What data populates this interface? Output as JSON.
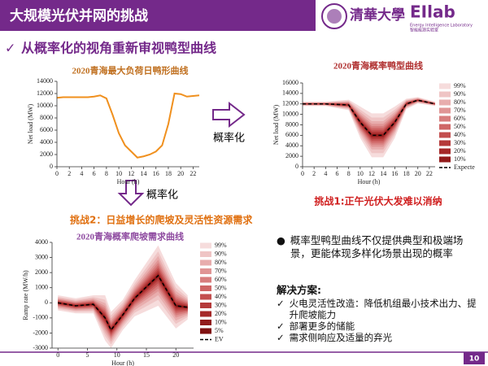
{
  "header": {
    "title": "大规模光伏并网的挑战",
    "logo_text": "清華大學",
    "lab_name": "EIlab",
    "lab_subtitle": "Energy Intelligence Laboratory",
    "lab_subtitle_cn": "智能能源实验室"
  },
  "subtitle": "从概率化的视角重新审视鸭型曲线",
  "charts": [
    {
      "type": "line",
      "title": "2020青海最大负荷日鸭形曲线",
      "xlabel": "Hour (h)",
      "ylabel": "Net load (MW)",
      "color": "#f0901e",
      "x": [
        0,
        1,
        2,
        3,
        4,
        5,
        6,
        7,
        8,
        9,
        10,
        11,
        12,
        13,
        14,
        15,
        16,
        17,
        18,
        19,
        20,
        21,
        22,
        23
      ],
      "values": [
        11300,
        11400,
        11400,
        11400,
        11400,
        11400,
        11500,
        11700,
        11200,
        8500,
        5500,
        3500,
        2500,
        1500,
        1700,
        2000,
        2500,
        3500,
        7000,
        12000,
        11900,
        11500,
        11600,
        11700
      ],
      "xlim": [
        0,
        23
      ],
      "xticks": [
        0,
        2,
        4,
        6,
        8,
        10,
        12,
        14,
        16,
        18,
        20,
        22
      ],
      "ylim": [
        0,
        14000
      ],
      "yticks": [
        0,
        2000,
        4000,
        6000,
        8000,
        10000,
        12000,
        14000
      ]
    },
    {
      "type": "fan",
      "title": "2020青海概率鸭型曲线",
      "xlabel": "Hour (h)",
      "ylabel": "Net load (MW)",
      "x": [
        0,
        4,
        8,
        10,
        12,
        14,
        16,
        18,
        20,
        23
      ],
      "xlim": [
        0,
        23
      ],
      "xticks": [
        0,
        2,
        4,
        6,
        8,
        10,
        12,
        14,
        16,
        18,
        20,
        22
      ],
      "ylim": [
        0,
        16000
      ],
      "yticks": [
        0,
        2000,
        4000,
        6000,
        8000,
        10000,
        12000,
        14000,
        16000
      ],
      "series": [
        {
          "name": "99%",
          "color": "#f6dcdc",
          "upper": [
            12400,
            12400,
            12800,
            11500,
            10200,
            10200,
            11500,
            13000,
            13300,
            12400
          ],
          "lower": [
            11600,
            11600,
            10800,
            5500,
            1800,
            1800,
            5500,
            11000,
            12100,
            11600
          ]
        },
        {
          "name": "90%",
          "color": "#efc5c5",
          "upper": [
            12320,
            12320,
            12600,
            10900,
            9400,
            9400,
            10900,
            12800,
            13180,
            12320
          ],
          "lower": [
            11680,
            11680,
            11000,
            6100,
            2600,
            2600,
            6100,
            11200,
            12220,
            11680
          ]
        },
        {
          "name": "80%",
          "color": "#e8adad",
          "upper": [
            12260,
            12260,
            12450,
            10450,
            8700,
            8700,
            10450,
            12650,
            13090,
            12260
          ],
          "lower": [
            11740,
            11740,
            11150,
            6550,
            3300,
            3300,
            6550,
            11350,
            12310,
            11740
          ]
        },
        {
          "name": "70%",
          "color": "#e09595",
          "upper": [
            12210,
            12210,
            12320,
            10060,
            8200,
            8200,
            10060,
            12520,
            13010,
            12210
          ],
          "lower": [
            11790,
            11790,
            11280,
            6940,
            3800,
            3800,
            6940,
            11480,
            12390,
            11790
          ]
        },
        {
          "name": "60%",
          "color": "#d87e7e",
          "upper": [
            12170,
            12170,
            12220,
            9760,
            7760,
            7760,
            9760,
            12420,
            12950,
            12170
          ],
          "lower": [
            11830,
            11830,
            11380,
            7240,
            4240,
            4240,
            7240,
            11580,
            12450,
            11830
          ]
        },
        {
          "name": "50%",
          "color": "#cf6666",
          "upper": [
            12130,
            12130,
            12130,
            9500,
            7400,
            7400,
            9500,
            12330,
            12900,
            12130
          ],
          "lower": [
            11870,
            11870,
            11470,
            7500,
            4600,
            4600,
            7500,
            11670,
            12500,
            11870
          ]
        },
        {
          "name": "40%",
          "color": "#c34f4f",
          "upper": [
            12100,
            12100,
            12050,
            9250,
            7050,
            7050,
            9250,
            12250,
            12850,
            12100
          ],
          "lower": [
            11900,
            11900,
            11550,
            7750,
            4950,
            4950,
            7750,
            11750,
            12550,
            11900
          ]
        },
        {
          "name": "30%",
          "color": "#b53a3a",
          "upper": [
            12070,
            12070,
            11970,
            9010,
            6710,
            6710,
            9010,
            12170,
            12800,
            12070
          ],
          "lower": [
            11930,
            11930,
            11630,
            7990,
            5290,
            5290,
            7990,
            11830,
            12600,
            11930
          ]
        },
        {
          "name": "20%",
          "color": "#a52828",
          "upper": [
            12040,
            12040,
            11900,
            8800,
            6420,
            6420,
            8800,
            12100,
            12760,
            12040
          ],
          "lower": [
            11960,
            11960,
            11700,
            8200,
            5580,
            5580,
            8200,
            11900,
            12640,
            11960
          ]
        },
        {
          "name": "10%",
          "color": "#921a1a",
          "upper": [
            12020,
            12020,
            11850,
            8650,
            6210,
            6210,
            8650,
            12050,
            12730,
            12020
          ],
          "lower": [
            11980,
            11980,
            11750,
            8350,
            5790,
            5790,
            8350,
            11950,
            12670,
            11980
          ]
        }
      ],
      "expected": {
        "name": "Expecte",
        "values": [
          12000,
          12000,
          11800,
          8500,
          6000,
          6000,
          8500,
          12000,
          12700,
          12000
        ]
      }
    },
    {
      "type": "fan",
      "title": "2020青海概率爬坡需求曲线",
      "xlabel": "Hour (h)",
      "ylabel": "Ramp rate (MW/h)",
      "x": [
        0,
        3,
        6,
        8,
        9,
        11,
        13,
        17,
        20,
        22
      ],
      "xlim": [
        -1,
        23
      ],
      "xticks": [
        0,
        5,
        10,
        15,
        20
      ],
      "ylim": [
        -3000,
        4000
      ],
      "yticks": [
        -3000,
        -2000,
        -1000,
        0,
        1000,
        2000,
        3000,
        4000
      ],
      "series": [
        {
          "name": "99%",
          "color": "#f6dcdc",
          "upper": [
            500,
            300,
            500,
            500,
            -600,
            200,
            1500,
            3800,
            1300,
            500
          ],
          "lower": [
            -500,
            -700,
            -700,
            -2500,
            -3000,
            -1800,
            -900,
            -200,
            -1700,
            -1100
          ]
        },
        {
          "name": "90%",
          "color": "#efc5c5",
          "upper": [
            400,
            200,
            380,
            200,
            -840,
            0,
            1260,
            3400,
            1000,
            340
          ],
          "lower": [
            -400,
            -600,
            -580,
            -2200,
            -2760,
            -1600,
            -660,
            200,
            -1400,
            -940
          ]
        },
        {
          "name": "80%",
          "color": "#e8adad",
          "upper": [
            325,
            125,
            290,
            -25,
            -1020,
            -150,
            1080,
            3100,
            775,
            220
          ],
          "lower": [
            -325,
            -525,
            -490,
            -1975,
            -2580,
            -1450,
            -480,
            500,
            -1175,
            -820
          ]
        },
        {
          "name": "70%",
          "color": "#e09595",
          "upper": [
            260,
            60,
            212,
            -220,
            -1176,
            -280,
            924,
            2840,
            580,
            116
          ],
          "lower": [
            -260,
            -460,
            -412,
            -1780,
            -2424,
            -1320,
            -324,
            760,
            -980,
            -716
          ]
        },
        {
          "name": "60%",
          "color": "#d87e7e",
          "upper": [
            210,
            10,
            152,
            -370,
            -1296,
            -380,
            804,
            2640,
            430,
            36
          ],
          "lower": [
            -210,
            -410,
            -352,
            -1630,
            -2304,
            -1220,
            -204,
            960,
            -830,
            -636
          ]
        },
        {
          "name": "50%",
          "color": "#cf6666",
          "upper": [
            165,
            -35,
            98,
            -505,
            -1404,
            -470,
            696,
            2460,
            295,
            -36
          ],
          "lower": [
            -165,
            -365,
            -298,
            -1495,
            -2196,
            -1130,
            -96,
            1140,
            -695,
            -564
          ]
        },
        {
          "name": "40%",
          "color": "#c34f4f",
          "upper": [
            125,
            -75,
            50,
            -625,
            -1500,
            -550,
            600,
            2300,
            175,
            -100
          ],
          "lower": [
            -125,
            -325,
            -250,
            -1375,
            -2100,
            -1050,
            0,
            1300,
            -575,
            -500
          ]
        },
        {
          "name": "30%",
          "color": "#b53a3a",
          "upper": [
            85,
            -115,
            2,
            -745,
            -1596,
            -630,
            504,
            2140,
            55,
            -164
          ],
          "lower": [
            -85,
            -285,
            -202,
            -1255,
            -2004,
            -970,
            96,
            1460,
            -455,
            -436
          ]
        },
        {
          "name": "20%",
          "color": "#a52828",
          "upper": [
            50,
            -150,
            -40,
            -850,
            -1680,
            -700,
            420,
            2000,
            -50,
            -220
          ],
          "lower": [
            -50,
            -250,
            -160,
            -1150,
            -1920,
            -900,
            180,
            1600,
            -350,
            -380
          ]
        },
        {
          "name": "10%",
          "color": "#921a1a",
          "upper": [
            25,
            -175,
            -70,
            -925,
            -1740,
            -750,
            360,
            1900,
            -125,
            -260
          ],
          "lower": [
            -25,
            -225,
            -130,
            -1075,
            -1860,
            -850,
            240,
            1700,
            -275,
            -340
          ]
        },
        {
          "name": "5%",
          "color": "#7f1010",
          "upper": [
            12,
            -188,
            -85,
            -962,
            -1770,
            -775,
            330,
            1850,
            -162,
            -280
          ],
          "lower": [
            -12,
            -212,
            -115,
            -1038,
            -1830,
            -825,
            270,
            1750,
            -238,
            -320
          ]
        }
      ],
      "expected": {
        "name": "EV",
        "values": [
          0,
          -200,
          -100,
          -1000,
          -1800,
          -800,
          300,
          1800,
          -200,
          -300
        ]
      }
    }
  ],
  "arrow_labels": [
    "概率化",
    "概率化"
  ],
  "challenges": [
    "挑战1:正午光伏大发难以消纳",
    "挑战2：日益增长的爬坡及灵活性资源需求"
  ],
  "bullet": "概率型鸭型曲线不仅提供典型和极端场景，更能体现多样化场景出现的概率",
  "solutions": {
    "title": "解决方案:",
    "items": [
      "火电灵活性改造：降低机组最小技术出力、提升爬坡能力",
      "部署更多的储能",
      "需求侧响应及适量的弃光"
    ]
  },
  "page_number": "10"
}
